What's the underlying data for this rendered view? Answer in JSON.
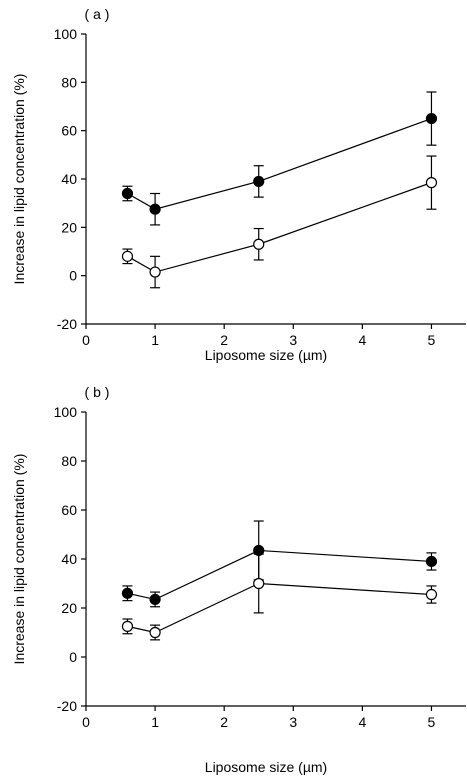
{
  "chart_data": [
    {
      "type": "scatter",
      "panel_label": "( a )",
      "xlabel": "Liposome size (µm)",
      "ylabel": "Increase in lipid concentration (%)",
      "xlim": [
        0,
        5.5
      ],
      "ylim": [
        -20,
        100
      ],
      "xticks": [
        0,
        1,
        2,
        3,
        4,
        5
      ],
      "yticks": [
        -20,
        0,
        20,
        40,
        60,
        80,
        100
      ],
      "grid": false,
      "series": [
        {
          "marker": "filled-circle",
          "x": [
            0.6,
            1,
            2.5,
            5
          ],
          "y": [
            34,
            27.5,
            39,
            65
          ],
          "error": [
            3,
            6.5,
            6.5,
            11
          ]
        },
        {
          "marker": "open-circle",
          "x": [
            0.6,
            1,
            2.5,
            5
          ],
          "y": [
            8,
            1.5,
            13,
            38.5
          ],
          "error": [
            3,
            6.5,
            6.5,
            11
          ]
        }
      ]
    },
    {
      "type": "scatter",
      "panel_label": "( b )",
      "xlabel": "Liposome size (µm)",
      "ylabel": "Increase in lipid concentration (%)",
      "xlim": [
        0,
        5.5
      ],
      "ylim": [
        -20,
        100
      ],
      "xticks": [
        0,
        1,
        2,
        3,
        4,
        5
      ],
      "yticks": [
        -20,
        0,
        20,
        40,
        60,
        80,
        100
      ],
      "grid": false,
      "series": [
        {
          "marker": "filled-circle",
          "x": [
            0.6,
            1,
            2.5,
            5
          ],
          "y": [
            26,
            23.5,
            43.5,
            39
          ],
          "error": [
            3,
            3,
            12,
            3.5
          ]
        },
        {
          "marker": "open-circle",
          "x": [
            0.6,
            1,
            2.5,
            5
          ],
          "y": [
            12.5,
            10,
            30,
            25.5
          ],
          "error": [
            3,
            3,
            12,
            3.5
          ]
        }
      ]
    }
  ]
}
